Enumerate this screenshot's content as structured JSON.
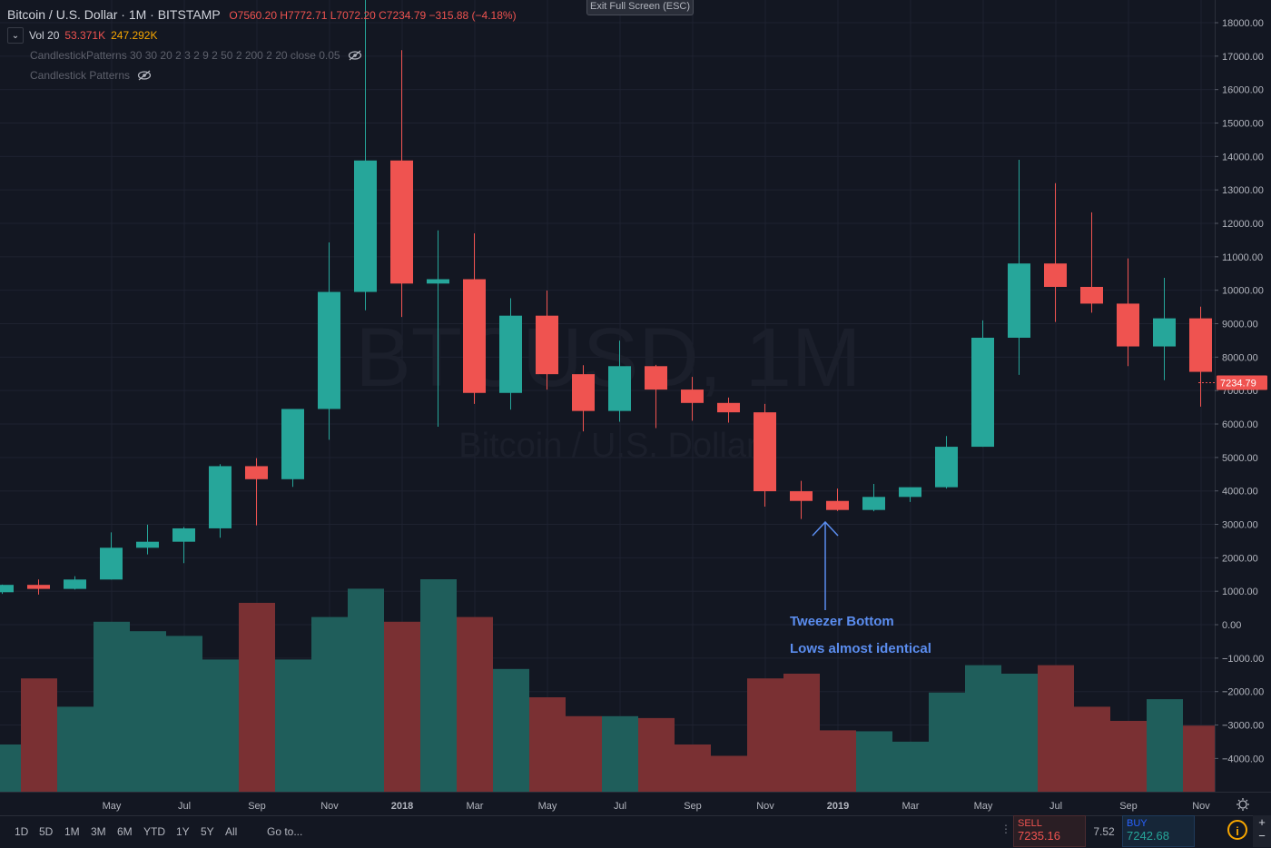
{
  "header": {
    "symbol": "Bitcoin / U.S. Dollar · 1M · BITSTAMP",
    "ohlc": "O7560.20 H7772.71 L7072.20 C7234.79 −315.88 (−4.18%)"
  },
  "volume_legend": {
    "label": "Vol 20",
    "value1": "53.371K",
    "value2": "247.292K"
  },
  "indicators": [
    "CandlestickPatterns 30 30 20 2 3 2 9 2 50 2 200 2 20 close 0.05",
    "Candlestick Patterns"
  ],
  "exit_button": "Exit Full Screen (ESC)",
  "watermark": {
    "symbol": "BTCUSD, 1M",
    "name": "Bitcoin / U.S. Dollar"
  },
  "annotation": {
    "title": "Tweezer Bottom",
    "subtitle": "Lows almost identical"
  },
  "timeframes": [
    "1D",
    "5D",
    "1M",
    "3M",
    "6M",
    "YTD",
    "1Y",
    "5Y",
    "All"
  ],
  "goto_label": "Go to...",
  "trade": {
    "sell_label": "SELL",
    "sell_price": "7235.16",
    "spread": "7.52",
    "buy_label": "BUY",
    "buy_price": "7242.68"
  },
  "icons": {
    "chevron": "chevron-down-icon",
    "eye": "eye-off-icon",
    "gear": "gear-icon",
    "info": "info-icon",
    "dots": "drag-dots-icon"
  },
  "colors": {
    "up": "#26a69a",
    "down": "#ef5350",
    "volUp": "#1f5e5b",
    "volDown": "#7a3033",
    "price_tag": "#ef5350",
    "annotation": "#5b8def"
  },
  "chart_data": {
    "type": "candlestick",
    "x_ticks": [
      "May",
      "Jul",
      "Sep",
      "Nov",
      "2018",
      "Mar",
      "May",
      "Jul",
      "Sep",
      "Nov",
      "2019",
      "Mar",
      "May",
      "Jul",
      "Sep",
      "Nov"
    ],
    "y_ticks": [
      "18000.00",
      "17000.00",
      "16000.00",
      "15000.00",
      "14000.00",
      "13000.00",
      "12000.00",
      "11000.00",
      "10000.00",
      "9000.00",
      "8000.00",
      "7000.00",
      "6000.00",
      "5000.00",
      "4000.00",
      "3000.00",
      "2000.00",
      "1000.00",
      "0.00",
      "−1000.00",
      "−2000.00",
      "−3000.00",
      "−4000.00"
    ],
    "ylim": [
      -4800,
      18700
    ],
    "last_price": "7234.79",
    "series": [
      {
        "date": "2017-02",
        "open": 970,
        "high": 1200,
        "low": 920,
        "close": 1190,
        "volume": 500
      },
      {
        "date": "2017-03",
        "open": 1190,
        "high": 1350,
        "low": 900,
        "close": 1070,
        "volume": 1200
      },
      {
        "date": "2017-04",
        "open": 1070,
        "high": 1450,
        "low": 1050,
        "close": 1350,
        "volume": 900
      },
      {
        "date": "2017-05",
        "open": 1350,
        "high": 2760,
        "low": 1350,
        "close": 2300,
        "volume": 1800
      },
      {
        "date": "2017-06",
        "open": 2300,
        "high": 2990,
        "low": 2100,
        "close": 2480,
        "volume": 1700
      },
      {
        "date": "2017-07",
        "open": 2480,
        "high": 2920,
        "low": 1840,
        "close": 2880,
        "volume": 1650
      },
      {
        "date": "2017-08",
        "open": 2880,
        "high": 4800,
        "low": 2600,
        "close": 4740,
        "volume": 1400
      },
      {
        "date": "2017-09",
        "open": 4740,
        "high": 4980,
        "low": 2970,
        "close": 4350,
        "volume": 2000
      },
      {
        "date": "2017-10",
        "open": 4350,
        "high": 6450,
        "low": 4120,
        "close": 6450,
        "volume": 1400
      },
      {
        "date": "2017-11",
        "open": 6450,
        "high": 11430,
        "low": 5530,
        "close": 9950,
        "volume": 1850
      },
      {
        "date": "2017-12",
        "open": 9950,
        "high": 19700,
        "low": 9400,
        "close": 13880,
        "volume": 2150
      },
      {
        "date": "2018-01",
        "open": 13880,
        "high": 17180,
        "low": 9200,
        "close": 10200,
        "volume": 1800
      },
      {
        "date": "2018-02",
        "open": 10200,
        "high": 11790,
        "low": 5920,
        "close": 10330,
        "volume": 2250
      },
      {
        "date": "2018-03",
        "open": 10330,
        "high": 11700,
        "low": 6600,
        "close": 6930,
        "volume": 1850
      },
      {
        "date": "2018-04",
        "open": 6930,
        "high": 9760,
        "low": 6430,
        "close": 9240,
        "volume": 1300
      },
      {
        "date": "2018-05",
        "open": 9240,
        "high": 9990,
        "low": 7030,
        "close": 7490,
        "volume": 1000
      },
      {
        "date": "2018-06",
        "open": 7490,
        "high": 7760,
        "low": 5780,
        "close": 6390,
        "volume": 800
      },
      {
        "date": "2018-07",
        "open": 6390,
        "high": 8490,
        "low": 6070,
        "close": 7730,
        "volume": 800
      },
      {
        "date": "2018-08",
        "open": 7730,
        "high": 7770,
        "low": 5880,
        "close": 7030,
        "volume": 780
      },
      {
        "date": "2018-09",
        "open": 7030,
        "high": 7410,
        "low": 6100,
        "close": 6630,
        "volume": 500
      },
      {
        "date": "2018-10",
        "open": 6630,
        "high": 6790,
        "low": 6040,
        "close": 6350,
        "volume": 380
      },
      {
        "date": "2018-11",
        "open": 6350,
        "high": 6600,
        "low": 3530,
        "close": 3990,
        "volume": 1200
      },
      {
        "date": "2018-12",
        "open": 3990,
        "high": 4300,
        "low": 3160,
        "close": 3700,
        "volume": 1250
      },
      {
        "date": "2019-01",
        "open": 3700,
        "high": 4070,
        "low": 3400,
        "close": 3430,
        "volume": 650
      },
      {
        "date": "2019-02",
        "open": 3430,
        "high": 4210,
        "low": 3390,
        "close": 3820,
        "volume": 640
      },
      {
        "date": "2019-03",
        "open": 3820,
        "high": 4100,
        "low": 3670,
        "close": 4110,
        "volume": 530
      },
      {
        "date": "2019-04",
        "open": 4110,
        "high": 5640,
        "low": 4070,
        "close": 5320,
        "volume": 1050
      },
      {
        "date": "2019-05",
        "open": 5320,
        "high": 9100,
        "low": 5320,
        "close": 8580,
        "volume": 1340
      },
      {
        "date": "2019-06",
        "open": 8580,
        "high": 13900,
        "low": 7470,
        "close": 10800,
        "volume": 1250
      },
      {
        "date": "2019-07",
        "open": 10800,
        "high": 13200,
        "low": 9050,
        "close": 10100,
        "volume": 1340
      },
      {
        "date": "2019-08",
        "open": 10100,
        "high": 12330,
        "low": 9330,
        "close": 9600,
        "volume": 900
      },
      {
        "date": "2019-09",
        "open": 9600,
        "high": 10950,
        "low": 7730,
        "close": 8320,
        "volume": 750
      },
      {
        "date": "2019-10",
        "open": 8320,
        "high": 10370,
        "low": 7310,
        "close": 9160,
        "volume": 980
      },
      {
        "date": "2019-11",
        "open": 9160,
        "high": 9510,
        "low": 6520,
        "close": 7560,
        "volume": 700
      },
      {
        "date": "2019-12",
        "open": 7560,
        "high": 7772.71,
        "low": 7072.2,
        "close": 7234.79,
        "volume": 180
      }
    ]
  }
}
